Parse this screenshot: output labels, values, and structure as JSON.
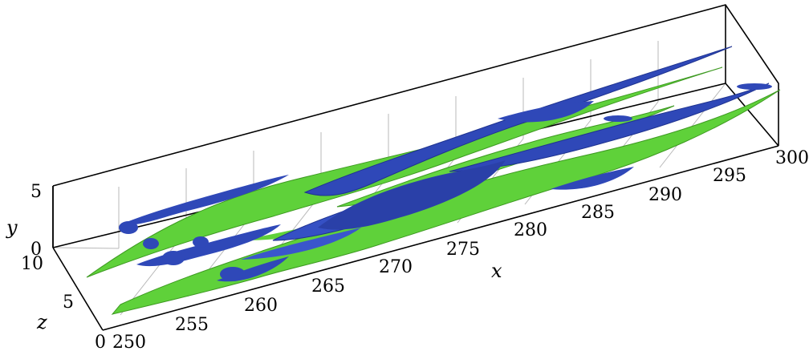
{
  "figure": {
    "axes": {
      "x": {
        "title": "x",
        "ticks": [
          "250",
          "255",
          "260",
          "265",
          "270",
          "275",
          "280",
          "285",
          "290",
          "295",
          "300"
        ]
      },
      "y": {
        "title": "y",
        "ticks": [
          "0",
          "5"
        ]
      },
      "z": {
        "title": "z",
        "ticks": [
          "0",
          "5",
          "10"
        ]
      }
    },
    "colors": {
      "isosurface_a": "#2f48b8",
      "isosurface_b": "#5fd13a",
      "grid": "#b8b8b8",
      "frame": "#000000"
    }
  }
}
